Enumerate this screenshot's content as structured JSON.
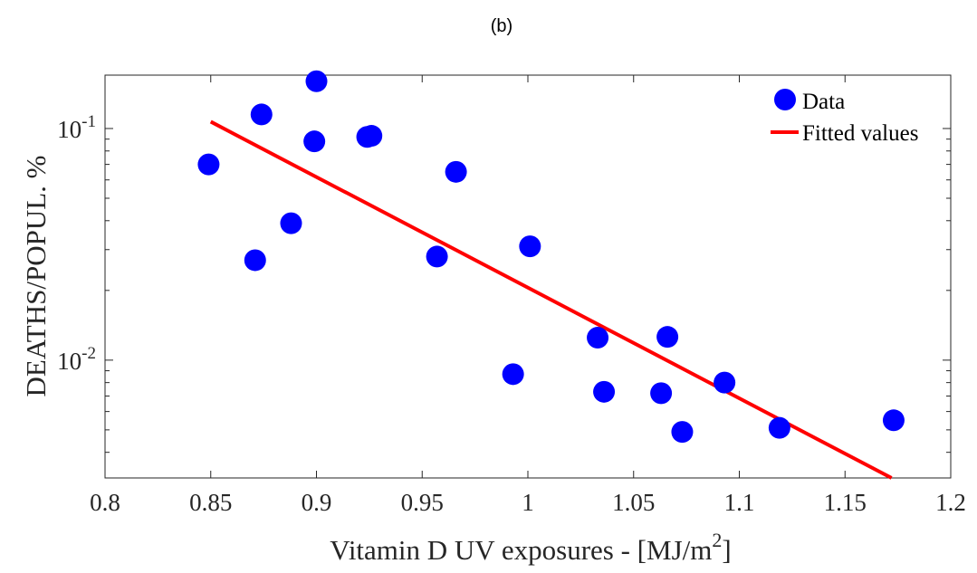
{
  "chart_data": {
    "type": "scatter",
    "panel_label": "(b)",
    "xlabel": "Vitamin D UV exposures - [MJ/m",
    "xlabel_sup": "2",
    "xlabel_end": "]",
    "ylabel": "DEATHS/POPUL. %",
    "xlim": [
      0.8,
      1.2
    ],
    "ylim": [
      0.0031,
      0.17
    ],
    "y_scale": "log",
    "x_ticks": [
      "0.8",
      "0.85",
      "0.9",
      "0.95",
      "1",
      "1.05",
      "1.1",
      "1.15",
      "1.2"
    ],
    "y_ticks": [
      {
        "base": "10",
        "exp": "-2",
        "value": 0.01
      },
      {
        "base": "10",
        "exp": "-1",
        "value": 0.1
      }
    ],
    "legend": {
      "position": "top-right",
      "entries": [
        "Data",
        "Fitted values"
      ]
    },
    "series": [
      {
        "name": "Data",
        "kind": "scatter",
        "color": "#0000ff",
        "points": [
          [
            0.849,
            0.07
          ],
          [
            0.871,
            0.027
          ],
          [
            0.874,
            0.115
          ],
          [
            0.888,
            0.039
          ],
          [
            0.899,
            0.088
          ],
          [
            0.9,
            0.16
          ],
          [
            0.924,
            0.092
          ],
          [
            0.926,
            0.093
          ],
          [
            0.957,
            0.028
          ],
          [
            0.966,
            0.065
          ],
          [
            0.993,
            0.0087
          ],
          [
            1.001,
            0.031
          ],
          [
            1.033,
            0.0125
          ],
          [
            1.036,
            0.0073
          ],
          [
            1.063,
            0.0072
          ],
          [
            1.066,
            0.0126
          ],
          [
            1.073,
            0.0049
          ],
          [
            1.093,
            0.008
          ],
          [
            1.119,
            0.0051
          ],
          [
            1.173,
            0.0055
          ]
        ]
      },
      {
        "name": "Fitted values",
        "kind": "line",
        "color": "#ff0000",
        "points": [
          [
            0.85,
            0.107
          ],
          [
            1.172,
            0.0031
          ]
        ]
      }
    ]
  }
}
